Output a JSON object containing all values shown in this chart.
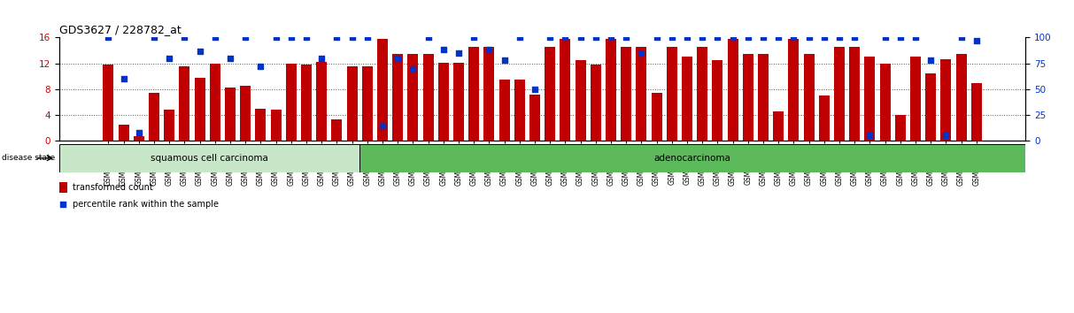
{
  "title": "GDS3627 / 228782_at",
  "samples": [
    "GSM258553",
    "GSM258555",
    "GSM258556",
    "GSM258557",
    "GSM258562",
    "GSM258563",
    "GSM258565",
    "GSM258566",
    "GSM258570",
    "GSM258578",
    "GSM258580",
    "GSM258583",
    "GSM258585",
    "GSM258590",
    "GSM258594",
    "GSM258596",
    "GSM258599",
    "GSM258603",
    "GSM258551",
    "GSM258552",
    "GSM258554",
    "GSM258558",
    "GSM258559",
    "GSM258560",
    "GSM258561",
    "GSM258564",
    "GSM258567",
    "GSM258568",
    "GSM258569",
    "GSM258571",
    "GSM258572",
    "GSM258573",
    "GSM258574",
    "GSM258575",
    "GSM258576",
    "GSM258577",
    "GSM258579",
    "GSM258581",
    "GSM258582",
    "GSM258584",
    "GSM258586",
    "GSM258587",
    "GSM258588",
    "GSM258589",
    "GSM258591",
    "GSM258592",
    "GSM258593",
    "GSM258595",
    "GSM258597",
    "GSM258598",
    "GSM258600",
    "GSM258601",
    "GSM258602",
    "GSM258604",
    "GSM258605",
    "GSM258606",
    "GSM258607",
    "GSM258608"
  ],
  "bar_values": [
    11.8,
    2.5,
    0.7,
    7.5,
    4.8,
    11.5,
    9.8,
    12.0,
    8.3,
    8.5,
    5.0,
    4.8,
    12.0,
    11.8,
    12.2,
    3.3,
    11.5,
    11.5,
    15.8,
    13.5,
    13.5,
    13.5,
    12.1,
    12.1,
    14.5,
    14.5,
    9.5,
    9.5,
    7.2,
    14.5,
    15.8,
    12.5,
    11.8,
    15.8,
    14.5,
    14.5,
    7.5,
    14.5,
    13.0,
    14.5,
    12.5,
    15.8,
    13.5,
    13.5,
    4.5,
    15.8,
    13.5,
    7.0,
    14.5,
    14.5,
    13.0,
    12.0,
    4.0,
    13.0,
    10.5,
    12.7,
    13.5,
    9.0
  ],
  "percentile_values": [
    100,
    60,
    8,
    100,
    80,
    100,
    87,
    100,
    80,
    100,
    72,
    100,
    100,
    100,
    80,
    100,
    100,
    100,
    15,
    80,
    70,
    100,
    88,
    85,
    100,
    88,
    78,
    100,
    50,
    100,
    100,
    100,
    100,
    100,
    100,
    85,
    100,
    100,
    100,
    100,
    100,
    100,
    100,
    100,
    100,
    100,
    100,
    100,
    100,
    100,
    5,
    100,
    100,
    100,
    78,
    5,
    100,
    97
  ],
  "squamous_count": 18,
  "bar_color": "#c00000",
  "dot_color": "#0033cc",
  "squamous_color": "#c8e6c8",
  "adeno_color": "#5cba5c",
  "left_ylim": [
    0,
    16
  ],
  "right_ylim": [
    0,
    100
  ],
  "left_yticks": [
    0,
    4,
    8,
    12,
    16
  ],
  "right_yticks": [
    0,
    25,
    50,
    75,
    100
  ],
  "left_ylabel_color": "#cc0000",
  "right_ylabel_color": "#0033cc",
  "grid_color": "#555555",
  "bg_color": "#ffffff",
  "tick_label_size": 5.5,
  "title_fontsize": 9
}
